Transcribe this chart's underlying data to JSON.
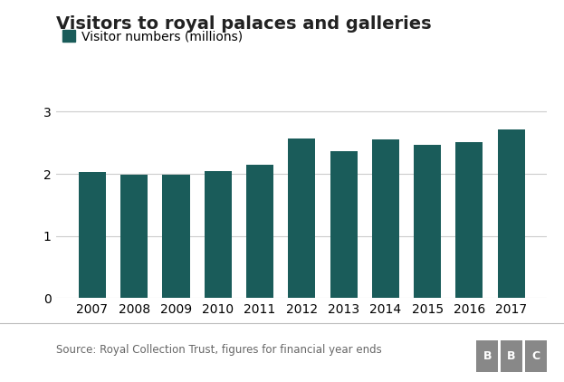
{
  "title": "Visitors to royal palaces and galleries",
  "legend_label": "Visitor numbers (millions)",
  "categories": [
    "2007",
    "2008",
    "2009",
    "2010",
    "2011",
    "2012",
    "2013",
    "2014",
    "2015",
    "2016",
    "2017"
  ],
  "values": [
    2.03,
    1.99,
    1.99,
    2.05,
    2.15,
    2.57,
    2.37,
    2.56,
    2.47,
    2.51,
    2.72
  ],
  "bar_color": "#1a5c5a",
  "ylim": [
    0,
    3.2
  ],
  "yticks": [
    0,
    1,
    2,
    3
  ],
  "source_text": "Source: Royal Collection Trust, figures for financial year ends",
  "bbc_text": "BBC",
  "background_color": "#ffffff",
  "grid_color": "#cccccc",
  "title_fontsize": 14,
  "legend_fontsize": 10,
  "tick_fontsize": 10,
  "source_fontsize": 8.5,
  "bbc_box_color": "#888888",
  "source_text_color": "#666666"
}
